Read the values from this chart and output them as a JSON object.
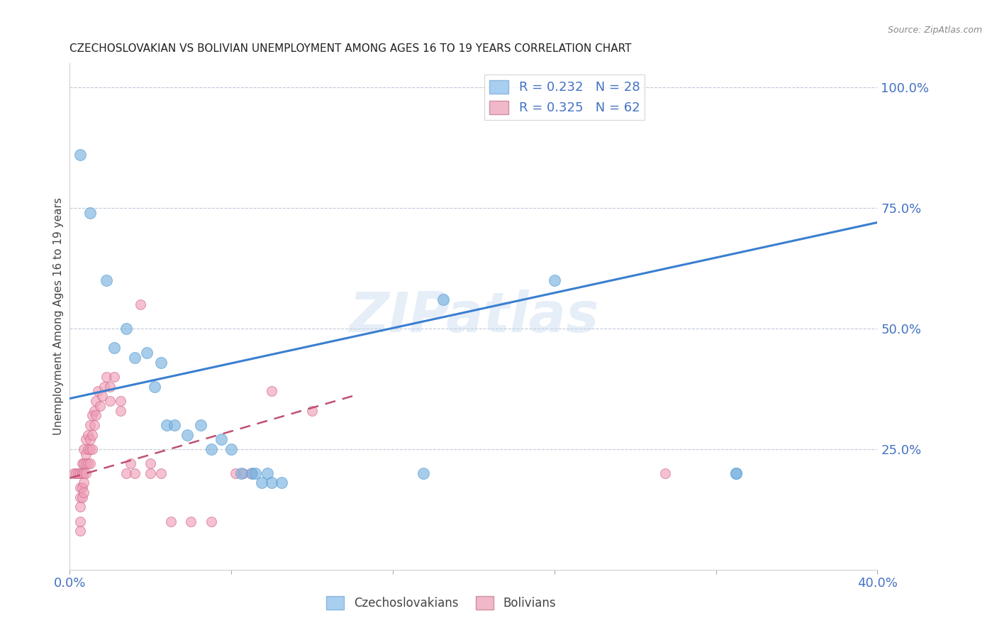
{
  "title": "CZECHOSLOVAKIAN VS BOLIVIAN UNEMPLOYMENT AMONG AGES 16 TO 19 YEARS CORRELATION CHART",
  "source": "Source: ZipAtlas.com",
  "ylabel": "Unemployment Among Ages 16 to 19 years",
  "xlim": [
    0.0,
    0.4
  ],
  "ylim": [
    0.0,
    1.05
  ],
  "ytick_vals": [
    0.0,
    0.25,
    0.5,
    0.75,
    1.0
  ],
  "ytick_labels_right": [
    "",
    "25.0%",
    "50.0%",
    "75.0%",
    "100.0%"
  ],
  "xtick_vals": [
    0.0,
    0.08,
    0.16,
    0.24,
    0.32,
    0.4
  ],
  "xtick_labels": [
    "0.0%",
    "",
    "",
    "",
    "",
    "40.0%"
  ],
  "watermark": "ZIPatlas",
  "czecho_color": "#7ab3e0",
  "czecho_edge": "#5a9fd4",
  "bolivian_color": "#f0a0b8",
  "bolivian_edge": "#d07090",
  "legend_czecho_fill": "#a8cef0",
  "legend_bolivian_fill": "#f0b8c8",
  "czecho_line_color": "#3a7fd0",
  "bolivian_line_color": "#c05070",
  "czecho_line": [
    [
      0.0,
      0.355
    ],
    [
      0.4,
      0.72
    ]
  ],
  "bolivian_line": [
    [
      0.0,
      0.19
    ],
    [
      0.14,
      0.36
    ]
  ],
  "czecho_dashed_line": [
    [
      0.0,
      0.3
    ],
    [
      0.4,
      0.73
    ]
  ],
  "czecho_scatter": [
    [
      0.005,
      0.86
    ],
    [
      0.01,
      0.74
    ],
    [
      0.018,
      0.6
    ],
    [
      0.022,
      0.46
    ],
    [
      0.028,
      0.5
    ],
    [
      0.032,
      0.44
    ],
    [
      0.038,
      0.45
    ],
    [
      0.042,
      0.38
    ],
    [
      0.045,
      0.43
    ],
    [
      0.048,
      0.3
    ],
    [
      0.052,
      0.3
    ],
    [
      0.058,
      0.28
    ],
    [
      0.065,
      0.3
    ],
    [
      0.07,
      0.25
    ],
    [
      0.075,
      0.27
    ],
    [
      0.08,
      0.25
    ],
    [
      0.085,
      0.2
    ],
    [
      0.09,
      0.2
    ],
    [
      0.092,
      0.2
    ],
    [
      0.095,
      0.18
    ],
    [
      0.098,
      0.2
    ],
    [
      0.1,
      0.18
    ],
    [
      0.105,
      0.18
    ],
    [
      0.175,
      0.2
    ],
    [
      0.185,
      0.56
    ],
    [
      0.24,
      0.6
    ],
    [
      0.33,
      0.2
    ],
    [
      0.33,
      0.2
    ]
  ],
  "bolivian_scatter": [
    [
      0.002,
      0.2
    ],
    [
      0.003,
      0.2
    ],
    [
      0.004,
      0.2
    ],
    [
      0.005,
      0.2
    ],
    [
      0.005,
      0.17
    ],
    [
      0.005,
      0.15
    ],
    [
      0.005,
      0.13
    ],
    [
      0.005,
      0.1
    ],
    [
      0.005,
      0.08
    ],
    [
      0.006,
      0.22
    ],
    [
      0.006,
      0.2
    ],
    [
      0.006,
      0.17
    ],
    [
      0.006,
      0.15
    ],
    [
      0.007,
      0.25
    ],
    [
      0.007,
      0.22
    ],
    [
      0.007,
      0.2
    ],
    [
      0.007,
      0.18
    ],
    [
      0.007,
      0.16
    ],
    [
      0.008,
      0.27
    ],
    [
      0.008,
      0.24
    ],
    [
      0.008,
      0.22
    ],
    [
      0.008,
      0.2
    ],
    [
      0.009,
      0.28
    ],
    [
      0.009,
      0.25
    ],
    [
      0.009,
      0.22
    ],
    [
      0.01,
      0.3
    ],
    [
      0.01,
      0.27
    ],
    [
      0.01,
      0.25
    ],
    [
      0.01,
      0.22
    ],
    [
      0.011,
      0.32
    ],
    [
      0.011,
      0.28
    ],
    [
      0.011,
      0.25
    ],
    [
      0.012,
      0.33
    ],
    [
      0.012,
      0.3
    ],
    [
      0.013,
      0.35
    ],
    [
      0.013,
      0.32
    ],
    [
      0.014,
      0.37
    ],
    [
      0.015,
      0.34
    ],
    [
      0.016,
      0.36
    ],
    [
      0.017,
      0.38
    ],
    [
      0.018,
      0.4
    ],
    [
      0.02,
      0.38
    ],
    [
      0.02,
      0.35
    ],
    [
      0.022,
      0.4
    ],
    [
      0.025,
      0.35
    ],
    [
      0.025,
      0.33
    ],
    [
      0.028,
      0.2
    ],
    [
      0.03,
      0.22
    ],
    [
      0.032,
      0.2
    ],
    [
      0.035,
      0.55
    ],
    [
      0.04,
      0.22
    ],
    [
      0.04,
      0.2
    ],
    [
      0.045,
      0.2
    ],
    [
      0.05,
      0.1
    ],
    [
      0.06,
      0.1
    ],
    [
      0.07,
      0.1
    ],
    [
      0.082,
      0.2
    ],
    [
      0.086,
      0.2
    ],
    [
      0.09,
      0.2
    ],
    [
      0.1,
      0.37
    ],
    [
      0.12,
      0.33
    ],
    [
      0.295,
      0.2
    ]
  ]
}
